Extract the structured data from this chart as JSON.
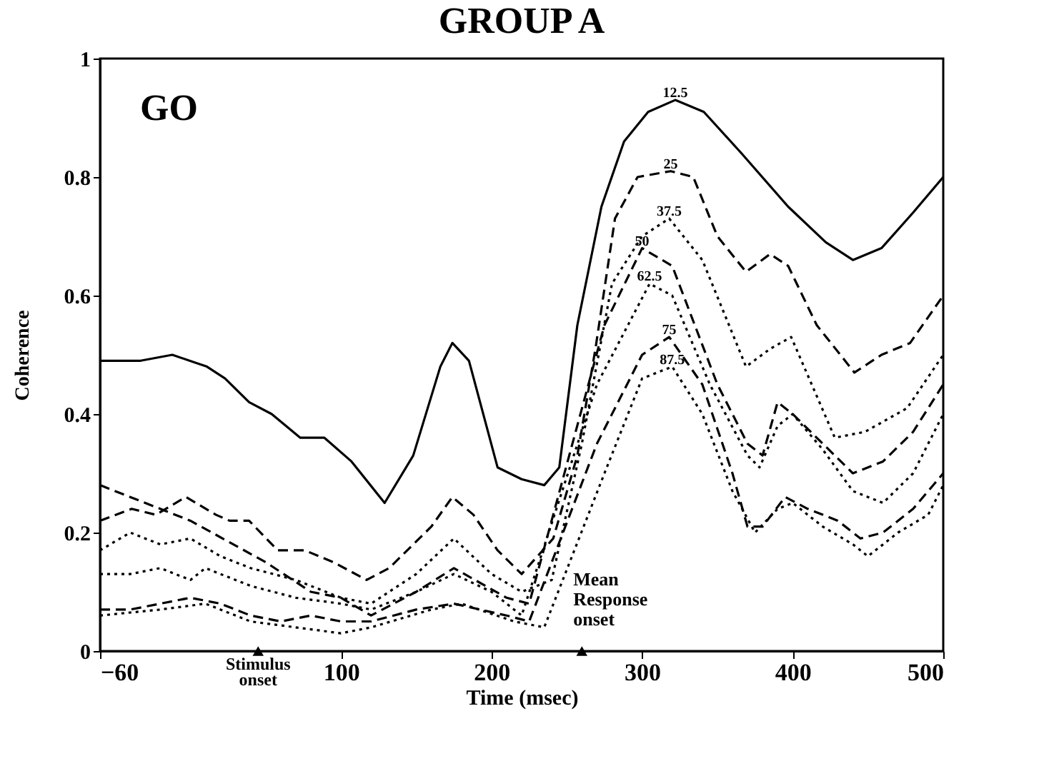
{
  "chart_data": {
    "type": "line",
    "title": "GROUP A",
    "xlabel": "Time (msec)",
    "ylabel": "Coherence",
    "xlim": [
      -60,
      500
    ],
    "xticks": [
      -60,
      100,
      200,
      300,
      400,
      500
    ],
    "ylim": [
      0,
      1
    ],
    "yticks": [
      0,
      0.2,
      0.4,
      0.6,
      0.8,
      1
    ],
    "grid": false,
    "legend": false,
    "marker": "none",
    "annotations": [
      "GO",
      {
        "text": "Stimulus onset",
        "x": 45,
        "y": 0
      },
      {
        "text": "Mean Response onset",
        "x": 260,
        "y": 0
      }
    ],
    "series": [
      {
        "name": "12.5",
        "color": "#000000",
        "line_style": "solid",
        "x": [
          -60,
          -33,
          -12,
          11,
          23,
          39,
          54,
          73,
          89,
          107,
          129,
          148,
          166,
          174,
          185,
          204,
          220,
          235,
          245,
          257,
          273,
          288,
          304,
          322,
          341,
          366,
          397,
          422,
          440,
          459,
          480,
          500
        ],
        "values": [
          0.49,
          0.49,
          0.5,
          0.48,
          0.46,
          0.42,
          0.4,
          0.36,
          0.36,
          0.32,
          0.25,
          0.33,
          0.48,
          0.52,
          0.49,
          0.31,
          0.29,
          0.28,
          0.31,
          0.55,
          0.75,
          0.86,
          0.91,
          0.93,
          0.91,
          0.84,
          0.75,
          0.69,
          0.66,
          0.68,
          0.74,
          0.8
        ]
      },
      {
        "name": "25",
        "color": "#000000",
        "line_style": "dashed",
        "x": [
          -60,
          -39,
          -23,
          -3,
          17,
          26,
          39,
          58,
          76,
          95,
          117,
          132,
          148,
          160,
          174,
          188,
          204,
          220,
          241,
          257,
          269,
          282,
          297,
          319,
          334,
          350,
          369,
          385,
          397,
          416,
          441,
          459,
          478,
          500
        ],
        "values": [
          0.22,
          0.24,
          0.23,
          0.26,
          0.23,
          0.22,
          0.22,
          0.17,
          0.17,
          0.15,
          0.12,
          0.14,
          0.18,
          0.21,
          0.26,
          0.23,
          0.17,
          0.13,
          0.19,
          0.33,
          0.51,
          0.73,
          0.8,
          0.81,
          0.8,
          0.7,
          0.64,
          0.67,
          0.65,
          0.55,
          0.47,
          0.5,
          0.52,
          0.6
        ]
      },
      {
        "name": "37.5",
        "color": "#000000",
        "line_style": "dotted",
        "x": [
          -60,
          -40,
          -20,
          0,
          20,
          40,
          70,
          100,
          120,
          150,
          175,
          200,
          220,
          240,
          260,
          280,
          300,
          318,
          340,
          369,
          385,
          399,
          428,
          448,
          476,
          500
        ],
        "values": [
          0.17,
          0.2,
          0.18,
          0.19,
          0.16,
          0.14,
          0.12,
          0.09,
          0.08,
          0.13,
          0.19,
          0.13,
          0.1,
          0.12,
          0.35,
          0.62,
          0.7,
          0.73,
          0.66,
          0.48,
          0.51,
          0.53,
          0.36,
          0.37,
          0.41,
          0.5
        ]
      },
      {
        "name": "50",
        "color": "#000000",
        "line_style": "dashed",
        "x": [
          -60,
          -40,
          0,
          50,
          80,
          100,
          120,
          150,
          175,
          210,
          225,
          275,
          300,
          320,
          350,
          370,
          380,
          390,
          400,
          420,
          440,
          460,
          480,
          500
        ],
        "values": [
          0.28,
          0.26,
          0.22,
          0.15,
          0.1,
          0.09,
          0.06,
          0.1,
          0.14,
          0.09,
          0.08,
          0.55,
          0.68,
          0.65,
          0.45,
          0.35,
          0.33,
          0.42,
          0.4,
          0.35,
          0.3,
          0.32,
          0.37,
          0.45
        ]
      },
      {
        "name": "62.5",
        "color": "#000000",
        "line_style": "dotted",
        "x": [
          -60,
          -40,
          -20,
          0,
          10,
          40,
          70,
          100,
          120,
          150,
          175,
          200,
          220,
          270,
          305,
          320,
          345,
          370,
          378,
          390,
          400,
          420,
          440,
          460,
          480,
          500
        ],
        "values": [
          0.13,
          0.13,
          0.14,
          0.12,
          0.14,
          0.11,
          0.09,
          0.08,
          0.07,
          0.1,
          0.13,
          0.1,
          0.06,
          0.45,
          0.62,
          0.6,
          0.45,
          0.33,
          0.31,
          0.38,
          0.4,
          0.34,
          0.27,
          0.25,
          0.3,
          0.4
        ]
      },
      {
        "name": "75",
        "color": "#000000",
        "line_style": "dashed",
        "x": [
          -60,
          -40,
          0,
          20,
          40,
          60,
          80,
          100,
          120,
          150,
          175,
          210,
          225,
          270,
          300,
          318,
          340,
          360,
          370,
          380,
          395,
          410,
          430,
          445,
          460,
          480,
          500
        ],
        "values": [
          0.07,
          0.07,
          0.09,
          0.08,
          0.06,
          0.05,
          0.06,
          0.05,
          0.05,
          0.07,
          0.08,
          0.06,
          0.05,
          0.35,
          0.5,
          0.53,
          0.45,
          0.3,
          0.21,
          0.21,
          0.26,
          0.24,
          0.22,
          0.19,
          0.2,
          0.24,
          0.3
        ]
      },
      {
        "type": "scatter",
        "color": "#000000",
        "marker": "triangle",
        "x": [
          45,
          260
        ],
        "values": [
          0,
          0
        ]
      },
      {
        "name": "87.5",
        "color": "#000000",
        "line_style": "dotted",
        "x": [
          -60,
          -20,
          10,
          40,
          70,
          100,
          120,
          160,
          180,
          215,
          235,
          275,
          300,
          320,
          340,
          360,
          375,
          390,
          400,
          420,
          440,
          450,
          470,
          490,
          500
        ],
        "values": [
          0.06,
          0.07,
          0.08,
          0.05,
          0.04,
          0.03,
          0.04,
          0.07,
          0.08,
          0.05,
          0.04,
          0.3,
          0.46,
          0.48,
          0.4,
          0.27,
          0.2,
          0.24,
          0.25,
          0.21,
          0.18,
          0.16,
          0.2,
          0.23,
          0.28
        ]
      }
    ]
  }
}
